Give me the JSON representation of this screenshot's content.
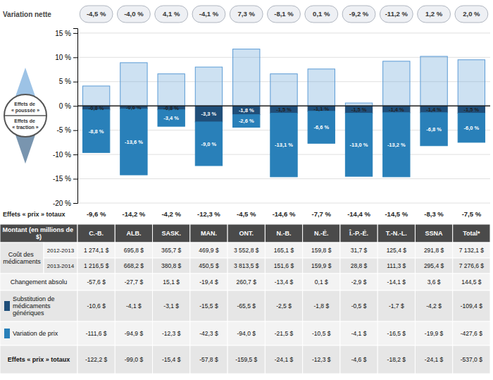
{
  "chart_data": {
    "type": "bar",
    "stacked": true,
    "data_labels": true,
    "grid": true,
    "categories": [
      "C.-B.",
      "ALB.",
      "SASK.",
      "MAN.",
      "ONT.",
      "N.-B.",
      "N.-É.",
      "Î.-P.-É.",
      "T.-N.-L.",
      "SSNA",
      "Total*"
    ],
    "ylim": [
      -20,
      16
    ],
    "yticks": [
      {
        "value": -20,
        "label": "-20 %"
      },
      {
        "value": -15,
        "label": "-15 %"
      },
      {
        "value": -10,
        "label": "-10 %"
      },
      {
        "value": -5,
        "label": "-5 %"
      },
      {
        "value": 0,
        "label": "0 %"
      },
      {
        "value": 5,
        "label": "5 %"
      },
      {
        "value": 10,
        "label": "10 %"
      },
      {
        "value": 15,
        "label": "15 %"
      }
    ],
    "series": [
      {
        "name": "Effets de « poussée »",
        "color": "#5b9bd5",
        "values": [
          4.1,
          8.9,
          6.6,
          8.0,
          11.7,
          6.6,
          7.6,
          0.6,
          9.2,
          10.2,
          9.5
        ]
      },
      {
        "name": "Substitution de médicaments génériques",
        "color": "#1f4e79",
        "values": [
          -0.8,
          -0.6,
          -0.8,
          -3.3,
          -1.8,
          -1.5,
          -1.1,
          -1.5,
          -1.4,
          -1.4,
          -1.5
        ],
        "value_labels": [
          "-0,8 %",
          "-0,6 %",
          "-0,8 %",
          "-3,3 %",
          "-1,8 %",
          "-1,5 %",
          "-1,1 %",
          "-1,5 %",
          "-1,4 %",
          "-1,4 %",
          "-1,5 %"
        ],
        "amounts": [
          "-10,6 $",
          "-4,1 $",
          "-3,1 $",
          "-15,5 $",
          "-65,5 $",
          "-2,5 $",
          "-1,8 $",
          "-0,5 $",
          "-1,7 $",
          "-4,2 $",
          "-109,4 $"
        ]
      },
      {
        "name": "Variation de prix",
        "color": "#2980b9",
        "values": [
          -8.8,
          -13.6,
          -3.4,
          -9.0,
          -2.6,
          -13.1,
          -6.6,
          -13.0,
          -13.2,
          -6.8,
          -6.0
        ],
        "value_labels": [
          "-8,8 %",
          "-13,6 %",
          "-3,4 %",
          "-9,0 %",
          "-2,6 %",
          "-13,1 %",
          "-6,6 %",
          "-13,0 %",
          "-13,2 %",
          "-6,8 %",
          "-6,0 %"
        ],
        "amounts": [
          "-111,6 $",
          "-94,9 $",
          "-12,3 $",
          "-42,3 $",
          "-94,0 $",
          "-21,5 $",
          "-10,5 $",
          "-4,1 $",
          "-16,5 $",
          "-19,9 $",
          "-427,6 $"
        ]
      }
    ],
    "annotations": [
      "Effets de « traction »"
    ],
    "net_change": {
      "label": "Variation nette",
      "values": [
        "-4,5 %",
        "-4,0 %",
        "4,1 %",
        "-4,1 %",
        "7,3 %",
        "-8,1 %",
        "0,1 %",
        "-9,2 %",
        "-11,2 %",
        "1,2 %",
        "2,0 %"
      ]
    },
    "total_price_effects": {
      "label": "Effets « prix » totaux",
      "values": [
        "-9,6 %",
        "-14,2 %",
        "-4,2 %",
        "-12,3 %",
        "-4,5 %",
        "-14,6 %",
        "-7,7 %",
        "-14,4 %",
        "-14,5 %",
        "-8,3 %",
        "-7,5 %"
      ],
      "amounts": [
        "-122,2 $",
        "-99,0 $",
        "-15,4 $",
        "-57,8 $",
        "-159,5 $",
        "-24,1 $",
        "-12,3 $",
        "-4,6 $",
        "-18,2 $",
        "-24,1 $",
        "-537,0 $"
      ]
    },
    "table": {
      "header": "Montant (en millions de $)",
      "cost": {
        "label": "Coût des médicaments",
        "years": [
          "2012-2013",
          "2013-2014"
        ],
        "values": [
          [
            "1 274,1 $",
            "695,8 $",
            "365,7 $",
            "469,9 $",
            "3 552,8 $",
            "165,1 $",
            "159,8 $",
            "31,7 $",
            "125,4 $",
            "291,8 $",
            "7 132,1 $"
          ],
          [
            "1 216,5 $",
            "668,2 $",
            "380,8 $",
            "450,5 $",
            "3 813,5 $",
            "151,6 $",
            "159,9 $",
            "28,8 $",
            "111,3 $",
            "295,4 $",
            "7 276,6 $"
          ]
        ]
      },
      "change": {
        "label": "Changement absolu",
        "values": [
          "-57,6 $",
          "-27,7 $",
          "15,1 $",
          "-19,4 $",
          "260,7 $",
          "-13,4 $",
          "0,1 $",
          "-2,9 $",
          "-14,1 $",
          "3,6 $",
          "144,5 $"
        ]
      }
    }
  }
}
